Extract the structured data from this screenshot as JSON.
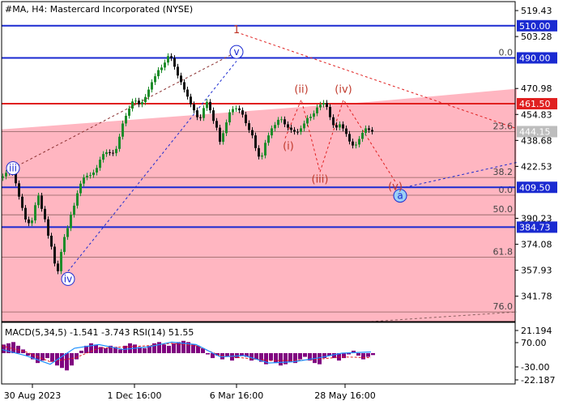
{
  "chart_data": {
    "type": "line",
    "title": "#MA, H4:  Mastercard Incorporated (NYSE)",
    "main": {
      "y_ticks": [
        519.43,
        503.28,
        470.98,
        454.83,
        438.68,
        422.53,
        390.23,
        374.08,
        357.93,
        341.78
      ],
      "ylim": [
        326.0,
        525.0
      ],
      "series": [
        {
          "style": "candles",
          "x": [
            0,
            4,
            8,
            12,
            16,
            20,
            24,
            28,
            32,
            36,
            40,
            44,
            48,
            52,
            56,
            60,
            64,
            68,
            72,
            76,
            80,
            84,
            88,
            92,
            96,
            100,
            104,
            108,
            112,
            116,
            120,
            124,
            128,
            132,
            136,
            140,
            144,
            148,
            152,
            156,
            160,
            164,
            168,
            172,
            176,
            180,
            184,
            188,
            192,
            196,
            200,
            204,
            208,
            212,
            216,
            220,
            224,
            228,
            232,
            236,
            240,
            244,
            248,
            252,
            256,
            260,
            264,
            268,
            272,
            276,
            280,
            284,
            288,
            292,
            296,
            300,
            304,
            308,
            312,
            316,
            320,
            324,
            328,
            332,
            336,
            340,
            344,
            348,
            352,
            356,
            360,
            364,
            368,
            372,
            376,
            380,
            384,
            388,
            392,
            396,
            400,
            404,
            408,
            412,
            416,
            420,
            424,
            428,
            432,
            436,
            440,
            444,
            448,
            452,
            456
          ],
          "y": [
            416.3,
            418.5,
            420.3,
            418.6,
            412.0,
            403.7,
            396.7,
            389.5,
            387.2,
            388.9,
            398.4,
            404.3,
            396.1,
            389.6,
            379.4,
            372.6,
            362.1,
            357.3,
            369.3,
            378.6,
            384.1,
            392.5,
            398.1,
            405.8,
            411.8,
            415.7,
            416.7,
            417.1,
            418.7,
            421.6,
            426.7,
            430.2,
            431.3,
            431.0,
            430.7,
            433.4,
            441.0,
            449.2,
            454.0,
            458.5,
            462.9,
            463.4,
            461.1,
            462.5,
            465.7,
            470.3,
            474.9,
            478.6,
            482.4,
            484.0,
            487.1,
            491.1,
            489.9,
            484.5,
            479.0,
            474.9,
            470.3,
            465.9,
            461.1,
            457.4,
            453.1,
            452.6,
            458.8,
            462.6,
            457.4,
            450.8,
            446.6,
            437.8,
            443.2,
            449.9,
            456.2,
            458.2,
            458.6,
            457.4,
            454.7,
            449.4,
            445.1,
            441.8,
            433.9,
            428.6,
            429.3,
            437.2,
            441.8,
            446.2,
            448.3,
            451.5,
            451.8,
            448.7,
            446.6,
            445.2,
            444.1,
            444.0,
            446.2,
            449.2,
            452.6,
            453.4,
            455.5,
            459.2,
            460.9,
            462.0,
            459.5,
            453.1,
            448.2,
            446.7,
            448.7,
            446.1,
            442.7,
            438.0,
            435.5,
            436.1,
            439.6,
            443.4,
            446.2,
            445.2,
            444.15
          ]
        },
        {
          "style": "trendline",
          "x": [
            0,
            456,
            636
          ],
          "y": [
            445.5,
            462.7,
            470.8
          ]
        }
      ],
      "levels": [
        {
          "value": 510.0,
          "label": "510.00",
          "color": "#1a2ad1"
        },
        {
          "value": 490.0,
          "label": "490.00",
          "color": "#1a2ad1"
        },
        {
          "value": 461.5,
          "label": "461.50",
          "color": "#e02020"
        },
        {
          "value": 409.5,
          "label": "409.50",
          "color": "#1a2ad1"
        },
        {
          "value": 384.73,
          "label": "384.73",
          "color": "#1a2ad1"
        }
      ],
      "current_price": {
        "value": 444.15,
        "label": "444.15",
        "color": "#bdbdbd"
      },
      "fib_levels": [
        {
          "value": 490.0,
          "label": "0.0"
        },
        {
          "value": 444.15,
          "label": "23.6"
        },
        {
          "value": 415.6,
          "label": "38.2"
        },
        {
          "value": 404.6,
          "label": "0.0"
        },
        {
          "value": 392.4,
          "label": "50.0"
        },
        {
          "value": 366.0,
          "label": "61.8"
        },
        {
          "value": 332.0,
          "label": "76.0"
        }
      ],
      "wave_labels": [
        {
          "text": "1",
          "x": 290,
          "y": 507.3,
          "kind": "plain"
        },
        {
          "text": "v",
          "x": 290,
          "y": 493.7,
          "kind": "circle"
        },
        {
          "text": "iii",
          "x": 14,
          "y": 421.4,
          "kind": "circle"
        },
        {
          "text": "iv",
          "x": 82,
          "y": 352.5,
          "kind": "circle"
        },
        {
          "text": "a",
          "x": 492,
          "y": 404.3,
          "kind": "circle-filled"
        },
        {
          "text": "(i)",
          "x": 354,
          "y": 435.0,
          "kind": "plain"
        },
        {
          "text": "(ii)",
          "x": 370,
          "y": 470.4,
          "kind": "plain"
        },
        {
          "text": "(iii)",
          "x": 393,
          "y": 414.4,
          "kind": "plain"
        },
        {
          "text": "(iv)",
          "x": 422,
          "y": 470.4,
          "kind": "plain"
        },
        {
          "text": "(v)",
          "x": 486,
          "y": 409.8,
          "kind": "plain"
        }
      ]
    },
    "macd": {
      "label": "MACD(5,34,5) -1.541 -3.743 RSI(14) 51.55",
      "y_ticks": [
        21.194,
        70.0,
        -30.0,
        -22.187
      ],
      "ylim": [
        -25.0,
        25.0
      ],
      "series": [
        {
          "name": "MACD",
          "style": "histogram",
          "x": [
            0,
            6,
            12,
            18,
            24,
            30,
            36,
            42,
            48,
            54,
            60,
            66,
            72,
            78,
            84,
            90,
            96,
            102,
            108,
            114,
            120,
            126,
            132,
            138,
            144,
            150,
            156,
            162,
            168,
            174,
            180,
            186,
            192,
            198,
            204,
            210,
            216,
            222,
            228,
            234,
            240,
            246,
            252,
            258,
            264,
            270,
            276,
            282,
            288,
            294,
            300,
            306,
            312,
            318,
            324,
            330,
            336,
            342,
            348,
            354,
            360,
            366,
            372,
            378,
            384,
            390,
            396,
            402,
            408,
            414,
            420,
            426,
            432,
            438,
            444,
            450,
            456
          ],
          "values": [
            7,
            8,
            9,
            6,
            3,
            -2,
            -5,
            -8,
            -6,
            -4,
            -7,
            -10,
            -12,
            -14,
            -10,
            -5,
            2,
            6,
            8,
            7,
            5,
            4,
            6,
            5,
            3,
            6,
            8,
            7,
            5,
            4,
            6,
            8,
            9,
            7,
            6,
            8,
            9,
            10,
            9,
            7,
            6,
            4,
            -1,
            -4,
            -2,
            -5,
            -3,
            -6,
            -4,
            -2,
            -3,
            -6,
            -5,
            -7,
            -9,
            -6,
            -8,
            -10,
            -9,
            -7,
            -8,
            -5,
            -3,
            -6,
            -8,
            -9,
            -4,
            -2,
            -4,
            -6,
            -4,
            -1,
            2,
            -2,
            -5,
            -3,
            -1.541
          ]
        },
        {
          "name": "Signal",
          "style": "line",
          "x": [
            0,
            30,
            60,
            90,
            120,
            150,
            180,
            210,
            240,
            270,
            300,
            330,
            360,
            390,
            420,
            456
          ],
          "values": [
            6,
            1,
            -7,
            -4,
            4,
            5,
            6,
            8,
            6,
            -2,
            -4,
            -6,
            -6,
            -5,
            -3,
            -3.743
          ]
        },
        {
          "name": "RSI",
          "style": "line",
          "x": [
            0,
            30,
            60,
            90,
            120,
            150,
            180,
            210,
            240,
            270,
            300,
            330,
            360,
            390,
            420,
            456
          ],
          "values": [
            3,
            -2,
            -9,
            4,
            7,
            3,
            5,
            9,
            7,
            -3,
            -2,
            -8,
            -7,
            -4,
            0,
            1
          ]
        }
      ]
    },
    "x_axis": {
      "labels": [
        {
          "text": "30 Aug 2023",
          "x": 38
        },
        {
          "text": "1 Dec 16:00",
          "x": 164
        },
        {
          "text": "6 Mar 16:00",
          "x": 290
        },
        {
          "text": "28 May 16:00",
          "x": 424
        }
      ]
    },
    "colors": {
      "channel": "#ffb6c1",
      "bull": "#1e8c2a",
      "bear": "#111111",
      "blue_line": "#1a2ad1",
      "red_line": "#e02020",
      "wave_red": "#c0392b",
      "macd_hist": "#800080",
      "signal": "#e02020",
      "rsi": "#1e90ff"
    }
  }
}
